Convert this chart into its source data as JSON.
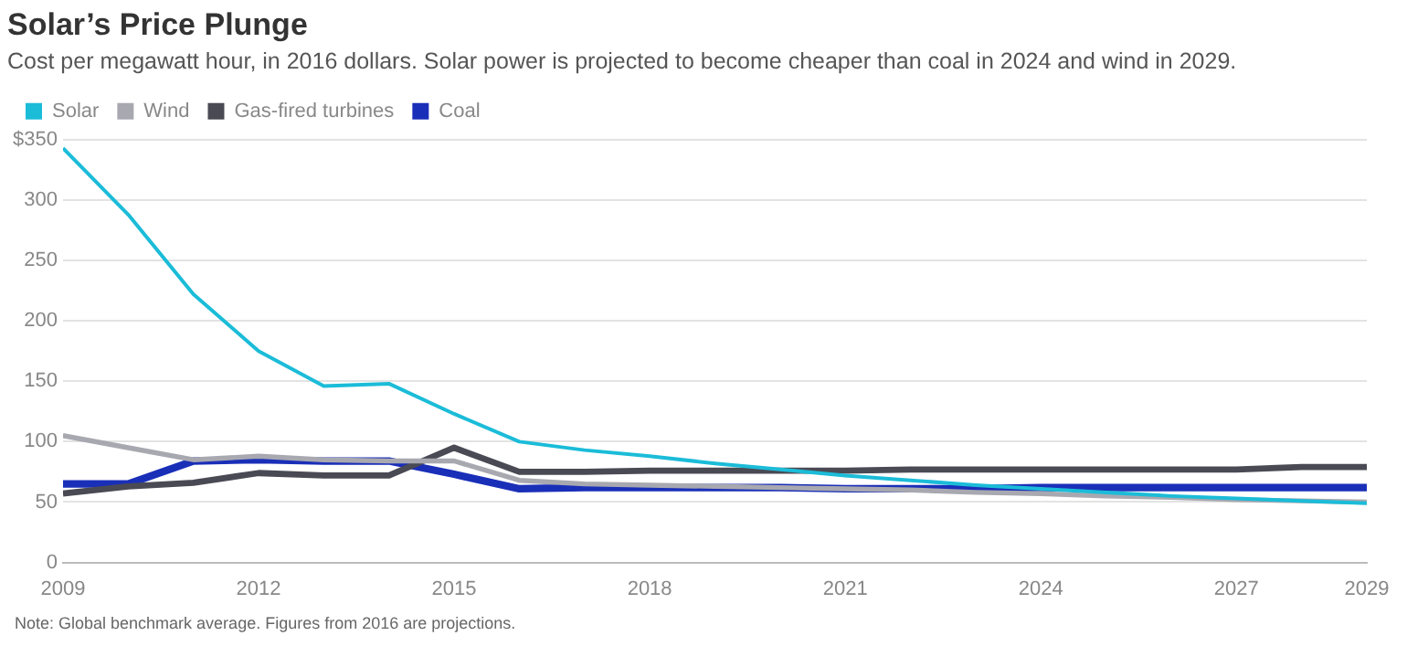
{
  "chart_data": {
    "type": "line",
    "title": "Solar’s Price Plunge",
    "subtitle": "Cost per megawatt hour, in 2016 dollars. Solar power is projected to become cheaper than coal in 2024 and wind in 2029.",
    "x": [
      2009,
      2010,
      2011,
      2012,
      2013,
      2014,
      2015,
      2016,
      2017,
      2018,
      2019,
      2020,
      2021,
      2022,
      2023,
      2024,
      2025,
      2026,
      2027,
      2028,
      2029
    ],
    "series": [
      {
        "name": "Solar",
        "color": "#1bbcd8",
        "values": [
          343,
          288,
          222,
          175,
          146,
          148,
          123,
          100,
          93,
          88,
          82,
          77,
          72,
          68,
          64,
          61,
          58,
          55,
          53,
          51,
          49
        ]
      },
      {
        "name": "Wind",
        "color": "#a8a8b0",
        "values": [
          105,
          95,
          85,
          88,
          85,
          84,
          84,
          68,
          65,
          64,
          63,
          62,
          61,
          60,
          58,
          57,
          55,
          54,
          52,
          51,
          50
        ]
      },
      {
        "name": "Gas-fired turbines",
        "color": "#4a4a55",
        "values": [
          57,
          63,
          66,
          74,
          72,
          72,
          95,
          75,
          75,
          76,
          76,
          76,
          76,
          77,
          77,
          77,
          77,
          77,
          77,
          79,
          79
        ]
      },
      {
        "name": "Coal",
        "color": "#1a2fb8",
        "values": [
          65,
          65,
          84,
          85,
          84,
          84,
          73,
          61,
          62,
          62,
          62,
          62,
          61,
          61,
          61,
          62,
          62,
          62,
          62,
          62,
          62
        ]
      }
    ],
    "xlim": [
      2009,
      2029
    ],
    "xticks": [
      2009,
      2012,
      2015,
      2018,
      2021,
      2024,
      2027,
      2029
    ],
    "ylim": [
      0,
      350
    ],
    "yticks": [
      0,
      50,
      100,
      150,
      200,
      250,
      300,
      {
        "value": 350,
        "label": "$350"
      }
    ],
    "grid": "y",
    "legend": "top left",
    "marker": "none",
    "line_style": "solid",
    "annotations": [
      "Note: Global benchmark average. Figures from 2016 are projections."
    ]
  }
}
